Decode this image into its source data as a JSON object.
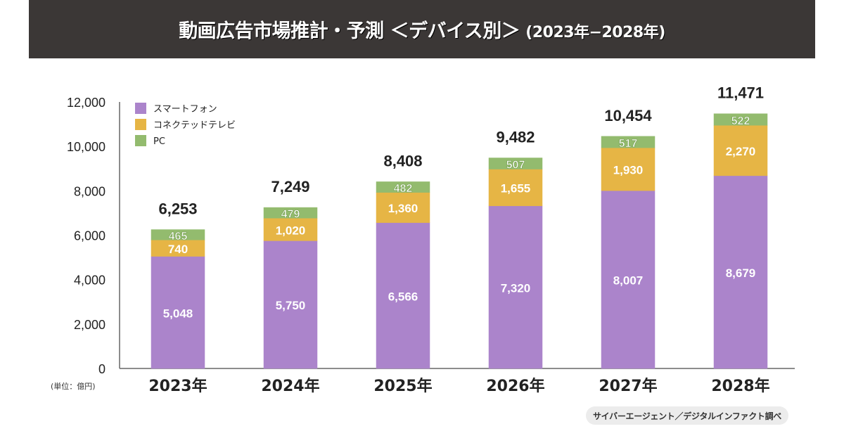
{
  "header": {
    "title": "動画広告市場推計・予測 ＜デバイス別＞",
    "subtitle": "(2023年−2028年)"
  },
  "unit_label": "(単位：億円)",
  "source": "サイバーエージェント／デジタルインファクト調べ",
  "colors": {
    "smartphone": "#ab84cb",
    "connected_tv": "#e6b545",
    "pc": "#93bb6e",
    "axis": "#666666",
    "text": "#222222"
  },
  "chart_data": {
    "type": "bar",
    "stacked": true,
    "title": "動画広告市場推計・予測 ＜デバイス別＞ (2023年−2028年)",
    "xlabel": "",
    "ylabel": "(単位：億円)",
    "ylim": [
      0,
      12000
    ],
    "yticks": [
      0,
      2000,
      4000,
      6000,
      8000,
      10000,
      12000
    ],
    "ytick_labels": [
      "0",
      "2,000",
      "4,000",
      "6,000",
      "8,000",
      "10,000",
      "12,000"
    ],
    "grid": false,
    "legend_position": "top-left",
    "categories": [
      "2023年",
      "2024年",
      "2025年",
      "2026年",
      "2027年",
      "2028年"
    ],
    "series": [
      {
        "name": "スマートフォン",
        "key": "smartphone",
        "values": [
          5048,
          5750,
          6566,
          7320,
          8007,
          8679
        ],
        "labels": [
          "5,048",
          "5,750",
          "6,566",
          "7,320",
          "8,007",
          "8,679"
        ]
      },
      {
        "name": "コネクテッドテレビ",
        "key": "connected_tv",
        "values": [
          740,
          1020,
          1360,
          1655,
          1930,
          2270
        ],
        "labels": [
          "740",
          "1,020",
          "1,360",
          "1,655",
          "1,930",
          "2,270"
        ]
      },
      {
        "name": "PC",
        "key": "pc",
        "values": [
          465,
          479,
          482,
          507,
          517,
          522
        ],
        "labels": [
          "465",
          "479",
          "482",
          "507",
          "517",
          "522"
        ]
      }
    ],
    "totals": [
      6253,
      7249,
      8408,
      9482,
      10454,
      11471
    ],
    "total_labels": [
      "6,253",
      "7,249",
      "8,408",
      "9,482",
      "10,454",
      "11,471"
    ]
  }
}
